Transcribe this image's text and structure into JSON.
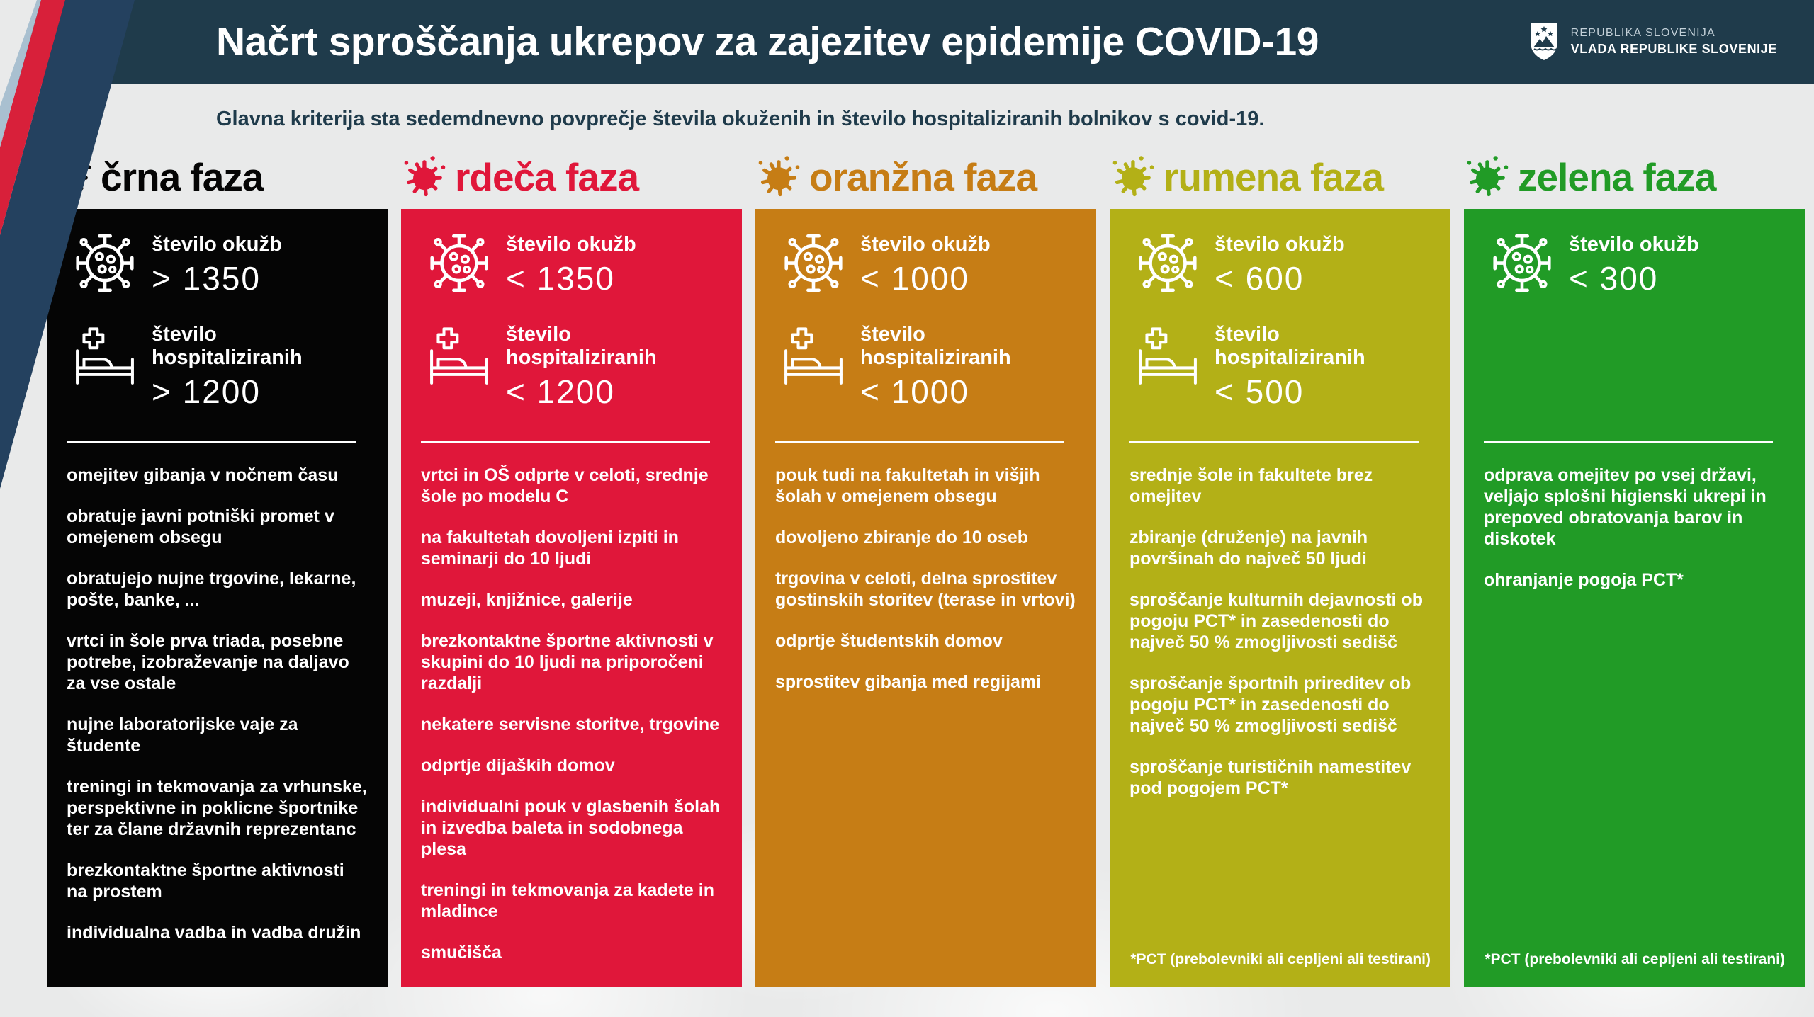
{
  "header": {
    "title": "Načrt sproščanja ukrepov za zajezitev epidemije COVID-19",
    "logo": {
      "line1": "REPUBLIKA SLOVENIJA",
      "line2": "VLADA REPUBLIKE SLOVENIJE"
    },
    "subtitle": "Glavna kriterija sta sedemdnevno povprečje števila okuženih in število hospitaliziranih bolnikov s covid-19."
  },
  "colors": {
    "band": "#1f3b4b",
    "background": "#e9eaea",
    "ribbon_navy": "#24415f",
    "ribbon_red": "#d8203a",
    "ribbon_steel": "#a9c0d0"
  },
  "phases": [
    {
      "id": "crna",
      "label": "črna faza",
      "color": "#050505",
      "stats": [
        {
          "id": "infections",
          "icon": "virus",
          "label": "število okužb",
          "value": "> 1350"
        },
        {
          "id": "hospitalized",
          "icon": "bed",
          "label": "število hospitaliziranih",
          "value": "> 1200"
        }
      ],
      "measures": [
        "omejitev gibanja v nočnem času",
        "obratuje javni potniški promet v omejenem obsegu",
        "obratujejo nujne trgovine, lekarne, pošte, banke, ...",
        "vrtci in šole prva triada, posebne potrebe, izobraževanje na daljavo za vse ostale",
        "nujne laboratorijske vaje za študente",
        "treningi in tekmovanja za vrhunske, perspektivne in poklicne športnike ter za člane državnih reprezentanc",
        "brezkontaktne športne aktivnosti na prostem",
        "individualna vadba in vadba družin"
      ],
      "footnote": null
    },
    {
      "id": "rdeca",
      "label": "rdeča faza",
      "color": "#e0173a",
      "stats": [
        {
          "id": "infections",
          "icon": "virus",
          "label": "število okužb",
          "value": "< 1350"
        },
        {
          "id": "hospitalized",
          "icon": "bed",
          "label": "število hospitaliziranih",
          "value": "< 1200"
        }
      ],
      "measures": [
        "vrtci in OŠ odprte v celoti, srednje šole po modelu C",
        "na fakultetah dovoljeni izpiti in seminarji do 10 ljudi",
        "muzeji, knjižnice, galerije",
        "brezkontaktne športne aktivnosti v skupini do 10 ljudi na priporočeni razdalji",
        "nekatere servisne storitve, trgovine",
        "odprtje dijaških domov",
        "individualni pouk v glasbenih šolah in izvedba baleta in sodobnega plesa",
        "treningi in tekmovanja za kadete in mladince",
        "smučišča"
      ],
      "footnote": null
    },
    {
      "id": "oranzna",
      "label": "oranžna faza",
      "color": "#c67d15",
      "stats": [
        {
          "id": "infections",
          "icon": "virus",
          "label": "število okužb",
          "value": "< 1000"
        },
        {
          "id": "hospitalized",
          "icon": "bed",
          "label": "število hospitaliziranih",
          "value": "< 1000"
        }
      ],
      "measures": [
        "pouk tudi na fakultetah in višjih šolah v omejenem obsegu",
        "dovoljeno zbiranje do 10 oseb",
        "trgovina v celoti, delna sprostitev gostinskih storitev (terase in vrtovi)",
        "odprtje študentskih domov",
        "sprostitev gibanja med regijami"
      ],
      "footnote": null
    },
    {
      "id": "rumena",
      "label": "rumena faza",
      "color": "#b3b017",
      "stats": [
        {
          "id": "infections",
          "icon": "virus",
          "label": "število okužb",
          "value": "< 600"
        },
        {
          "id": "hospitalized",
          "icon": "bed",
          "label": "število hospitaliziranih",
          "value": "< 500"
        }
      ],
      "measures": [
        "srednje šole in fakultete brez omejitev",
        "zbiranje (druženje) na javnih površinah do največ 50 ljudi",
        "sproščanje kulturnih dejavnosti ob pogoju PCT* in zasedenosti do največ 50 % zmogljivosti sedišč",
        "sproščanje športnih prireditev ob pogoju PCT* in zasedenosti do največ 50 % zmogljivosti sedišč",
        "sproščanje turističnih namestitev pod pogojem PCT*"
      ],
      "footnote": "*PCT (prebolevniki ali cepljeni ali testirani)"
    },
    {
      "id": "zelena",
      "label": "zelena faza",
      "color": "#219b26",
      "stats": [
        {
          "id": "infections",
          "icon": "virus",
          "label": "število okužb",
          "value": "< 300"
        }
      ],
      "measures": [
        "odprava omejitev po vsej državi, veljajo splošni higienski ukrepi in prepoved obratovanja barov in diskotek",
        "ohranjanje pogoja PCT*"
      ],
      "footnote": "*PCT (prebolevniki ali cepljeni ali testirani)"
    }
  ]
}
